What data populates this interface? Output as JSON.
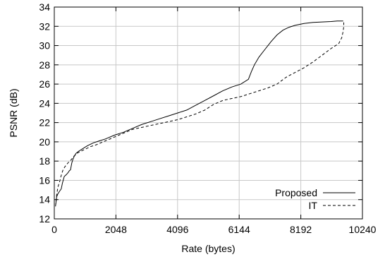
{
  "chart_data": {
    "type": "line",
    "title": "",
    "xlabel": "Rate (bytes)",
    "ylabel": "PSNR (dB)",
    "xlim": [
      0,
      10240
    ],
    "ylim": [
      12,
      34
    ],
    "xticks": [
      0,
      2048,
      4096,
      6144,
      8192,
      10240
    ],
    "yticks": [
      12,
      14,
      16,
      18,
      20,
      22,
      24,
      26,
      28,
      30,
      32,
      34
    ],
    "grid": true,
    "legend_position": "bottom-right",
    "series": [
      {
        "name": "Proposed",
        "style": "solid",
        "color": "#000000",
        "points": [
          [
            50,
            13.5
          ],
          [
            80,
            14.3
          ],
          [
            120,
            14.6
          ],
          [
            180,
            14.9
          ],
          [
            230,
            15.1
          ],
          [
            270,
            15.7
          ],
          [
            330,
            16.4
          ],
          [
            400,
            16.6
          ],
          [
            460,
            16.8
          ],
          [
            500,
            17.0
          ],
          [
            540,
            17.1
          ],
          [
            580,
            17.8
          ],
          [
            620,
            18.2
          ],
          [
            660,
            18.5
          ],
          [
            720,
            18.8
          ],
          [
            800,
            19.0
          ],
          [
            900,
            19.2
          ],
          [
            1000,
            19.4
          ],
          [
            1100,
            19.6
          ],
          [
            1300,
            19.9
          ],
          [
            1500,
            20.1
          ],
          [
            1700,
            20.3
          ],
          [
            2000,
            20.7
          ],
          [
            2300,
            21.0
          ],
          [
            2600,
            21.4
          ],
          [
            2900,
            21.8
          ],
          [
            3200,
            22.1
          ],
          [
            3500,
            22.4
          ],
          [
            3800,
            22.7
          ],
          [
            4100,
            23.0
          ],
          [
            4400,
            23.3
          ],
          [
            4700,
            23.8
          ],
          [
            5000,
            24.3
          ],
          [
            5300,
            24.8
          ],
          [
            5600,
            25.3
          ],
          [
            5900,
            25.7
          ],
          [
            6200,
            26.0
          ],
          [
            6450,
            26.5
          ],
          [
            6550,
            27.3
          ],
          [
            6650,
            28.0
          ],
          [
            6800,
            28.8
          ],
          [
            7000,
            29.6
          ],
          [
            7200,
            30.4
          ],
          [
            7400,
            31.1
          ],
          [
            7600,
            31.6
          ],
          [
            7800,
            31.9
          ],
          [
            8000,
            32.1
          ],
          [
            8300,
            32.3
          ],
          [
            8600,
            32.4
          ],
          [
            8900,
            32.45
          ],
          [
            9200,
            32.5
          ],
          [
            9400,
            32.55
          ],
          [
            9600,
            32.55
          ]
        ]
      },
      {
        "name": "IT",
        "style": "dashed",
        "color": "#000000",
        "points": [
          [
            40,
            13.3
          ],
          [
            80,
            14.5
          ],
          [
            120,
            15.3
          ],
          [
            180,
            15.9
          ],
          [
            230,
            16.5
          ],
          [
            290,
            17.1
          ],
          [
            350,
            17.4
          ],
          [
            450,
            17.8
          ],
          [
            550,
            18.1
          ],
          [
            650,
            18.5
          ],
          [
            800,
            18.9
          ],
          [
            1000,
            19.2
          ],
          [
            1200,
            19.5
          ],
          [
            1400,
            19.7
          ],
          [
            1700,
            20.1
          ],
          [
            2000,
            20.5
          ],
          [
            2300,
            20.9
          ],
          [
            2600,
            21.3
          ],
          [
            2900,
            21.5
          ],
          [
            3200,
            21.7
          ],
          [
            3500,
            21.9
          ],
          [
            3800,
            22.1
          ],
          [
            4100,
            22.3
          ],
          [
            4400,
            22.6
          ],
          [
            4700,
            22.9
          ],
          [
            5000,
            23.3
          ],
          [
            5300,
            23.9
          ],
          [
            5600,
            24.3
          ],
          [
            5900,
            24.5
          ],
          [
            6200,
            24.7
          ],
          [
            6500,
            25.0
          ],
          [
            6800,
            25.3
          ],
          [
            7100,
            25.6
          ],
          [
            7400,
            26.0
          ],
          [
            7700,
            26.7
          ],
          [
            8000,
            27.2
          ],
          [
            8300,
            27.7
          ],
          [
            8600,
            28.3
          ],
          [
            8900,
            29.0
          ],
          [
            9200,
            29.7
          ],
          [
            9450,
            30.2
          ],
          [
            9550,
            30.8
          ],
          [
            9600,
            31.5
          ],
          [
            9620,
            32.0
          ],
          [
            9620,
            32.4
          ]
        ]
      }
    ]
  }
}
